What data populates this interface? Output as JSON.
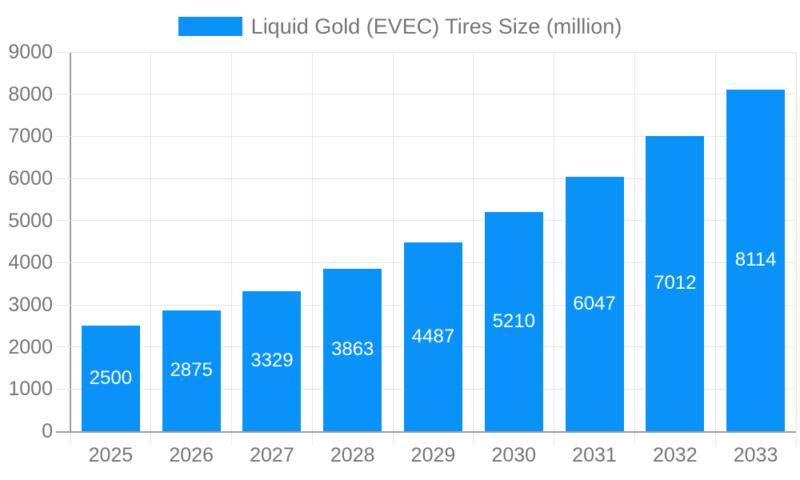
{
  "legend": {
    "label": "Liquid Gold (EVEC) Tires Size (million)"
  },
  "chart_data": {
    "type": "bar",
    "title": "Liquid Gold (EVEC) Tires Size (million)",
    "categories": [
      "2025",
      "2026",
      "2027",
      "2028",
      "2029",
      "2030",
      "2031",
      "2032",
      "2033"
    ],
    "values": [
      2500,
      2875,
      3329,
      3863,
      4487,
      5210,
      6047,
      7012,
      8114
    ],
    "xlabel": "",
    "ylabel": "",
    "ylim": [
      0,
      9000
    ],
    "yticks": [
      0,
      1000,
      2000,
      3000,
      4000,
      5000,
      6000,
      7000,
      8000,
      9000
    ],
    "grid": true,
    "legend_position": "top-center",
    "bar_color": "#0892FA",
    "value_label_color": "#FFFFFF",
    "value_label_position": "inside-center"
  },
  "colors": {
    "bar": "#0892FA",
    "axis": "#9E9E9E",
    "gridline": "#E6E6E6",
    "tick_label": "#757575",
    "legend_text": "#757575",
    "value_label": "#FFFFFF",
    "background": "#FFFFFF"
  }
}
